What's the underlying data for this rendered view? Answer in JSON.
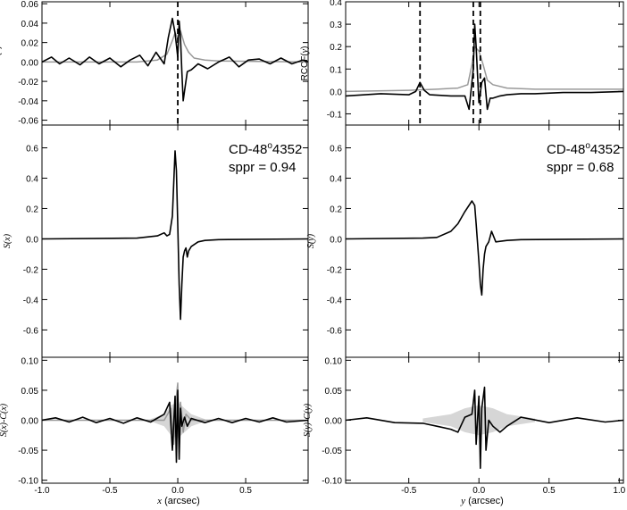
{
  "colors": {
    "black": "#000000",
    "gray": "#999999",
    "lightgray": "#d6d6d6"
  },
  "x_axis": {
    "ticks_left": [
      "-1.0",
      "-0.5",
      "0.0",
      "0.5"
    ],
    "ticks_right": [
      "-0.5",
      "0.0",
      "0.5",
      "1.0"
    ],
    "label_left": {
      "var": "x",
      "unit": " (arcsec)"
    },
    "label_right": {
      "var": "y",
      "unit": " (arcsec)"
    }
  },
  "annotations": {
    "star_left": {
      "prefix": "CD-48",
      "sup": "o",
      "suffix": "4352"
    },
    "sppr_left": "sppr = 0.94",
    "star_right": {
      "prefix": "CD-48",
      "sup": "o",
      "suffix": "4352"
    },
    "sppr_right": "sppr = 0.68"
  },
  "chart_data": [
    {
      "id": "rccf_x",
      "type": "line",
      "ylabel": "RCCF(x)",
      "xlim": [
        -1.0,
        0.96
      ],
      "ylim": [
        -0.065,
        0.062
      ],
      "yticks": [
        -0.06,
        -0.04,
        -0.02,
        0.0,
        0.02,
        0.04,
        0.06
      ],
      "ytick_labels": [
        "-0.06",
        "-0.04",
        "-0.02",
        "0.00",
        "0.02",
        "0.04",
        "0.06"
      ],
      "vlines": [
        0.0
      ],
      "series": [
        {
          "color": "#999999",
          "x": [
            -1.0,
            -0.3,
            -0.15,
            -0.08,
            -0.04,
            -0.02,
            0.0,
            0.02,
            0.05,
            0.08,
            0.12,
            0.2,
            0.3,
            0.96
          ],
          "y": [
            0.0,
            0.0,
            0.002,
            0.008,
            0.022,
            0.03,
            0.025,
            0.032,
            0.018,
            0.01,
            0.004,
            0.002,
            0.001,
            0.0
          ]
        },
        {
          "color": "#000000",
          "x": [
            -1.0,
            -0.93,
            -0.87,
            -0.8,
            -0.72,
            -0.65,
            -0.58,
            -0.5,
            -0.42,
            -0.35,
            -0.28,
            -0.22,
            -0.16,
            -0.1,
            -0.07,
            -0.04,
            -0.02,
            0.0,
            0.01,
            0.02,
            0.03,
            0.04,
            0.05,
            0.07,
            0.1,
            0.15,
            0.22,
            0.3,
            0.38,
            0.45,
            0.52,
            0.6,
            0.68,
            0.76,
            0.84,
            0.92,
            0.96
          ],
          "y": [
            0.0,
            0.005,
            -0.002,
            0.004,
            -0.003,
            0.005,
            -0.002,
            0.004,
            -0.005,
            0.002,
            0.007,
            -0.004,
            0.01,
            -0.002,
            0.025,
            0.045,
            0.03,
            0.005,
            0.042,
            0.025,
            -0.01,
            -0.04,
            -0.03,
            -0.01,
            -0.008,
            -0.002,
            -0.007,
            0.0,
            0.005,
            -0.005,
            0.002,
            0.003,
            -0.002,
            0.004,
            -0.002,
            0.002,
            0.0
          ]
        }
      ]
    },
    {
      "id": "rccf_y",
      "type": "line",
      "ylabel": "RCCF(y)",
      "xlim": [
        -0.95,
        1.03
      ],
      "ylim": [
        -0.15,
        0.4
      ],
      "yticks": [
        -0.1,
        0.0,
        0.1,
        0.2,
        0.3,
        0.4
      ],
      "ytick_labels": [
        "-0.1",
        "0.0",
        "0.1",
        "0.2",
        "0.3",
        "0.4"
      ],
      "vlines": [
        -0.42,
        -0.04,
        0.01
      ],
      "series": [
        {
          "color": "#999999",
          "x": [
            -0.95,
            -0.5,
            -0.3,
            -0.15,
            -0.08,
            -0.05,
            -0.03,
            0.0,
            0.03,
            0.06,
            0.1,
            0.2,
            0.4,
            1.03
          ],
          "y": [
            0.0,
            0.005,
            0.01,
            0.015,
            0.03,
            0.12,
            0.2,
            0.18,
            0.12,
            0.05,
            0.03,
            0.015,
            0.01,
            0.01
          ]
        },
        {
          "color": "#000000",
          "x": [
            -0.95,
            -0.7,
            -0.5,
            -0.45,
            -0.42,
            -0.39,
            -0.35,
            -0.2,
            -0.1,
            -0.07,
            -0.04,
            -0.03,
            -0.02,
            0.0,
            0.02,
            0.04,
            0.06,
            0.08,
            0.1,
            0.15,
            0.2,
            0.3,
            0.4,
            0.6,
            0.8,
            1.03
          ],
          "y": [
            -0.02,
            -0.01,
            -0.015,
            0.0,
            0.04,
            0.005,
            -0.015,
            -0.02,
            -0.02,
            -0.08,
            0.1,
            0.3,
            0.2,
            -0.05,
            0.04,
            0.06,
            -0.08,
            -0.03,
            -0.03,
            -0.02,
            -0.015,
            -0.01,
            -0.01,
            -0.005,
            -0.005,
            0.0
          ]
        }
      ]
    },
    {
      "id": "s_x",
      "type": "line",
      "ylabel": "S(x)",
      "xlim": [
        -1.0,
        0.96
      ],
      "ylim": [
        -0.78,
        0.75
      ],
      "yticks": [
        -0.6,
        -0.4,
        -0.2,
        0.0,
        0.2,
        0.4,
        0.6
      ],
      "ytick_labels": [
        "-0.6",
        "-0.4",
        "-0.2",
        "0.0",
        "0.2",
        "0.4",
        "0.6"
      ],
      "series": [
        {
          "color": "#000000",
          "x": [
            -1.0,
            -0.3,
            -0.15,
            -0.1,
            -0.08,
            -0.06,
            -0.04,
            -0.02,
            -0.01,
            0.0,
            0.01,
            0.02,
            0.03,
            0.04,
            0.05,
            0.06,
            0.07,
            0.08,
            0.1,
            0.15,
            0.2,
            0.3,
            0.96
          ],
          "y": [
            0.0,
            0.005,
            0.02,
            0.04,
            0.02,
            0.03,
            0.15,
            0.58,
            0.45,
            0.1,
            -0.3,
            -0.53,
            -0.3,
            -0.12,
            -0.08,
            -0.06,
            -0.12,
            -0.08,
            -0.05,
            -0.02,
            -0.01,
            -0.005,
            0.0
          ]
        }
      ]
    },
    {
      "id": "s_y",
      "type": "line",
      "ylabel": "S(y)",
      "xlim": [
        -0.95,
        1.03
      ],
      "ylim": [
        -0.78,
        0.75
      ],
      "yticks": [
        -0.6,
        -0.4,
        -0.2,
        0.0,
        0.2,
        0.4,
        0.6
      ],
      "ytick_labels": [
        "-0.6",
        "-0.4",
        "-0.2",
        "0.0",
        "0.2",
        "0.4",
        "0.6"
      ],
      "series": [
        {
          "color": "#000000",
          "x": [
            -0.95,
            -0.4,
            -0.3,
            -0.2,
            -0.15,
            -0.1,
            -0.05,
            -0.03,
            -0.02,
            0.0,
            0.01,
            0.02,
            0.03,
            0.04,
            0.05,
            0.07,
            0.09,
            0.12,
            0.2,
            0.3,
            1.03
          ],
          "y": [
            0.0,
            0.005,
            0.01,
            0.05,
            0.1,
            0.18,
            0.25,
            0.22,
            0.1,
            -0.15,
            -0.3,
            -0.37,
            -0.2,
            -0.1,
            -0.05,
            -0.02,
            0.05,
            -0.02,
            -0.01,
            -0.005,
            0.0
          ]
        }
      ]
    },
    {
      "id": "sc_x",
      "type": "line",
      "ylabel": "S(x)-C(x)",
      "xlim": [
        -1.0,
        0.96
      ],
      "ylim": [
        -0.105,
        0.105
      ],
      "yticks": [
        -0.1,
        -0.05,
        0.0,
        0.05,
        0.1
      ],
      "ytick_labels": [
        "-0.10",
        "-0.05",
        "0.00",
        "0.05",
        "0.10"
      ],
      "series": [
        {
          "color": "#d6d6d6",
          "fill": true,
          "x": [
            -0.2,
            -0.1,
            -0.05,
            0.0,
            0.05,
            0.1,
            0.2
          ],
          "y": [
            0.002,
            0.01,
            0.025,
            0.03,
            0.02,
            0.01,
            0.002
          ]
        },
        {
          "color": "#999999",
          "x": [
            -1.0,
            -0.1,
            -0.05,
            -0.03,
            -0.01,
            0.0,
            0.01,
            0.02,
            0.04,
            0.06,
            0.1,
            0.96
          ],
          "y": [
            0.0,
            0.0,
            0.02,
            -0.04,
            0.04,
            0.062,
            -0.05,
            0.03,
            -0.02,
            0.01,
            0.0,
            0.0
          ]
        },
        {
          "color": "#000000",
          "x": [
            -1.0,
            -0.9,
            -0.8,
            -0.7,
            -0.6,
            -0.5,
            -0.4,
            -0.3,
            -0.2,
            -0.1,
            -0.06,
            -0.04,
            -0.02,
            -0.01,
            0.0,
            0.01,
            0.02,
            0.03,
            0.05,
            0.07,
            0.1,
            0.2,
            0.3,
            0.4,
            0.5,
            0.6,
            0.7,
            0.8,
            0.96
          ],
          "y": [
            0.0,
            0.004,
            -0.003,
            0.005,
            -0.004,
            0.003,
            -0.005,
            0.004,
            -0.003,
            0.01,
            0.03,
            -0.05,
            0.04,
            -0.07,
            0.05,
            -0.065,
            0.02,
            -0.01,
            0.005,
            -0.01,
            0.003,
            -0.004,
            0.003,
            -0.004,
            0.003,
            -0.003,
            0.004,
            -0.003,
            0.0
          ]
        }
      ]
    },
    {
      "id": "sc_y",
      "type": "line",
      "ylabel": "S(y)-C(y)",
      "xlim": [
        -0.95,
        1.03
      ],
      "ylim": [
        -0.105,
        0.105
      ],
      "yticks": [
        -0.1,
        -0.05,
        0.0,
        0.05,
        0.1
      ],
      "ytick_labels": [
        "-0.10",
        "-0.05",
        "0.00",
        "0.05",
        "0.10"
      ],
      "series": [
        {
          "color": "#d6d6d6",
          "fill": true,
          "x": [
            -0.4,
            -0.2,
            -0.1,
            0.0,
            0.1,
            0.2,
            0.4
          ],
          "y": [
            0.003,
            0.01,
            0.02,
            0.025,
            0.02,
            0.01,
            0.003
          ]
        },
        {
          "color": "#000000",
          "x": [
            -0.95,
            -0.8,
            -0.6,
            -0.4,
            -0.3,
            -0.2,
            -0.15,
            -0.1,
            -0.05,
            -0.03,
            -0.02,
            0.0,
            0.01,
            0.02,
            0.04,
            0.05,
            0.07,
            0.1,
            0.15,
            0.2,
            0.3,
            0.5,
            0.7,
            0.9,
            1.03
          ],
          "y": [
            0.0,
            0.004,
            -0.004,
            -0.005,
            -0.01,
            -0.015,
            -0.02,
            0.005,
            0.01,
            0.05,
            -0.04,
            0.04,
            -0.08,
            0.02,
            0.055,
            -0.05,
            0.0,
            -0.01,
            -0.02,
            -0.01,
            0.005,
            -0.004,
            0.004,
            -0.003,
            0.0
          ]
        }
      ]
    }
  ]
}
